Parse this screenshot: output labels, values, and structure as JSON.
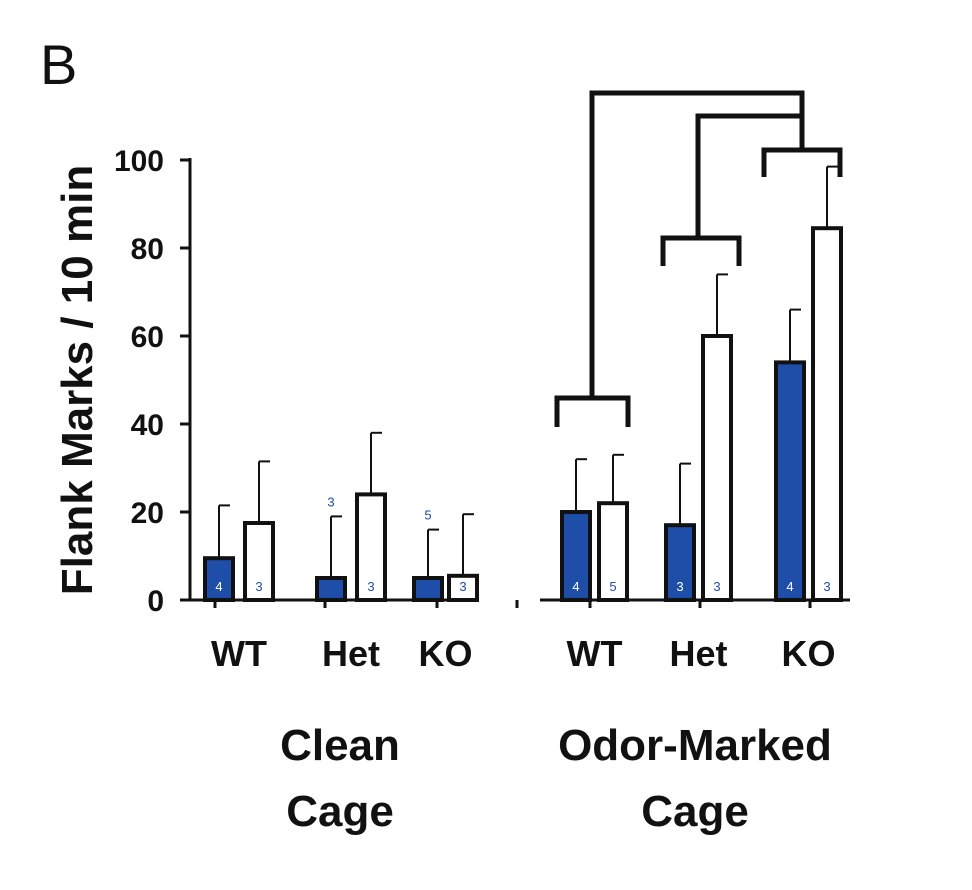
{
  "panel_letter": "B",
  "colors": {
    "genotype_bar": "#1f4ea8",
    "odor_bar": "#ffffff",
    "ink": "#111111"
  },
  "chart_data": {
    "type": "bar",
    "ylabel": "Flank Marks / 10 min",
    "ylim": [
      0,
      100
    ],
    "yticks": [
      0,
      20,
      40,
      60,
      80,
      100
    ],
    "grid": false,
    "conditions": [
      {
        "label_lines": [
          "Clean",
          "Cage"
        ],
        "groups": [
          {
            "label": "WT",
            "bars": [
              {
                "fill": "blue",
                "value": 9.5,
                "error": 12,
                "n": "4"
              },
              {
                "fill": "white",
                "value": 17.5,
                "error": 14,
                "n": "3"
              }
            ]
          },
          {
            "label": "Het",
            "bars": [
              {
                "fill": "blue",
                "value": 5,
                "error": 14,
                "n": "3"
              },
              {
                "fill": "white",
                "value": 24,
                "error": 14,
                "n": "3"
              }
            ]
          },
          {
            "label": "KO",
            "bars": [
              {
                "fill": "blue",
                "value": 5,
                "error": 11,
                "n": "5"
              },
              {
                "fill": "white",
                "value": 5.5,
                "error": 14,
                "n": "3"
              }
            ]
          }
        ]
      },
      {
        "label_lines": [
          "Odor-Marked",
          "Cage"
        ],
        "groups": [
          {
            "label": "WT",
            "bars": [
              {
                "fill": "blue",
                "value": 20,
                "error": 12,
                "n": "4"
              },
              {
                "fill": "white",
                "value": 22,
                "error": 11,
                "n": "5"
              }
            ]
          },
          {
            "label": "Het",
            "bars": [
              {
                "fill": "blue",
                "value": 17,
                "error": 14,
                "n": "3"
              },
              {
                "fill": "white",
                "value": 60,
                "error": 14,
                "n": "3"
              }
            ]
          },
          {
            "label": "KO",
            "bars": [
              {
                "fill": "blue",
                "value": 54,
                "error": 12,
                "n": "4"
              },
              {
                "fill": "white",
                "value": 84.5,
                "error": 14,
                "n": "3"
              }
            ]
          }
        ]
      }
    ]
  }
}
